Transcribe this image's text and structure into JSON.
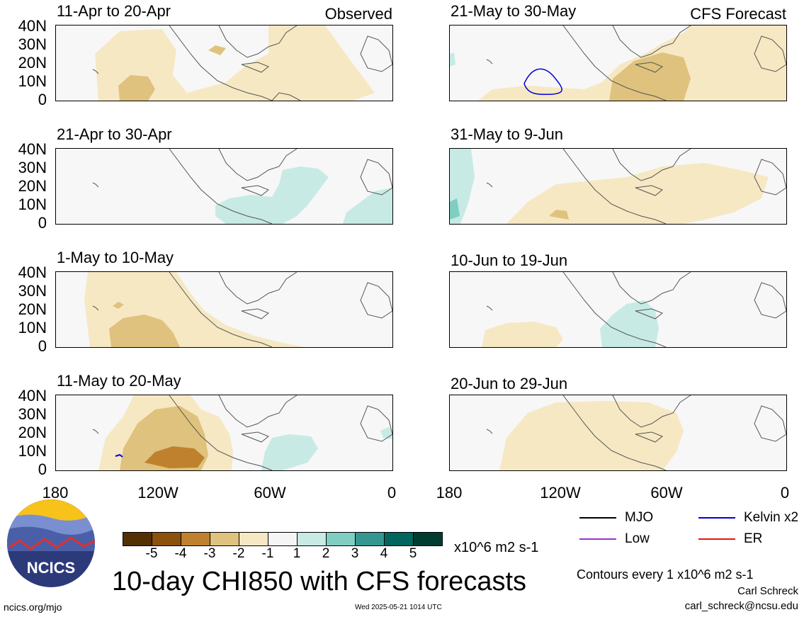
{
  "panels": {
    "p1": {
      "title": "11-Apr to 20-Apr",
      "tag": "Observed"
    },
    "p2": {
      "title": "21-Apr to 30-Apr"
    },
    "p3": {
      "title": "1-May to 10-May"
    },
    "p4": {
      "title": "11-May to 20-May"
    },
    "p5": {
      "title": "21-May to 30-May",
      "tag": "CFS Forecast"
    },
    "p6": {
      "title": "31-May to 9-Jun"
    },
    "p7": {
      "title": "10-Jun to 19-Jun"
    },
    "p8": {
      "title": "20-Jun to 29-Jun"
    }
  },
  "y_ticks": [
    "40N",
    "30N",
    "20N",
    "10N",
    "0"
  ],
  "x_ticks": [
    "180",
    "120W",
    "60W",
    "0"
  ],
  "colorbar": {
    "labels": [
      "-5",
      "-4",
      "-3",
      "-2",
      "-1",
      "1",
      "2",
      "3",
      "4",
      "5"
    ],
    "colors": [
      "#543005",
      "#8c510a",
      "#bf812d",
      "#dfc27d",
      "#f6e8c3",
      "#f5f5f5",
      "#c7eae5",
      "#80cdc1",
      "#35978f",
      "#01665e",
      "#003c30"
    ],
    "units": "x10^6 m2 s-1"
  },
  "legend": {
    "mjo": {
      "label": "MJO",
      "color": "#000000"
    },
    "kelvin": {
      "label": "Kelvin x2",
      "color": "#0000dd"
    },
    "low": {
      "label": "Low",
      "color": "#9933cc"
    },
    "er": {
      "label": "ER",
      "color": "#ee1111"
    }
  },
  "footer": {
    "title": "10-day CHI850 with CFS forecasts",
    "contours": "Contours every 1 x10^6 m2 s-1",
    "author": "Carl Schreck",
    "email": "carl_schreck@ncsu.edu",
    "site": "ncics.org/mjo",
    "timestamp": "Wed 2025-05-21 1014 UTC",
    "logo_text": "NCICS"
  }
}
